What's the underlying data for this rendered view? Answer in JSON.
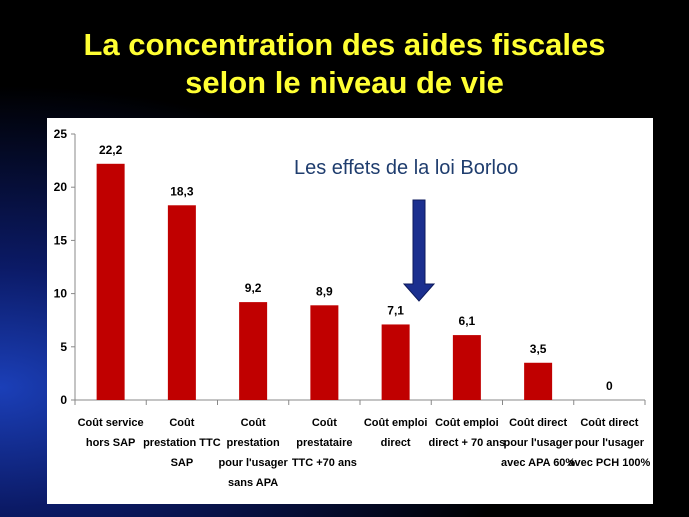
{
  "slide": {
    "title_line1": "La concentration des aides fiscales",
    "title_line2": "selon le niveau de vie"
  },
  "chart_data": {
    "type": "bar",
    "title": "",
    "annotation": "Les effets de la loi Borloo",
    "categories": [
      [
        "Coût service",
        "hors SAP"
      ],
      [
        "Coût",
        "prestation TTC",
        "SAP"
      ],
      [
        "Coût",
        "prestation",
        "pour l'usager",
        "sans APA"
      ],
      [
        "Coût",
        "prestataire",
        "TTC +70 ans"
      ],
      [
        "Coût emploi",
        "direct"
      ],
      [
        "Coût emploi",
        "direct + 70 ans"
      ],
      [
        "Coût direct",
        "pour l'usager",
        "avec APA 60%"
      ],
      [
        "Coût direct",
        "pour l'usager",
        "avec PCH 100%"
      ]
    ],
    "values": [
      22.2,
      18.3,
      9.2,
      8.9,
      7.1,
      6.1,
      3.5,
      0
    ],
    "value_labels": [
      "22,2",
      "18,3",
      "9,2",
      "8,9",
      "7,1",
      "6,1",
      "3,5",
      "0"
    ],
    "ylim": [
      0,
      25
    ],
    "yticks": [
      0,
      5,
      10,
      15,
      20,
      25
    ],
    "grid": false,
    "bar_color": "#c00000",
    "arrow_color": "#1b2f8f"
  }
}
